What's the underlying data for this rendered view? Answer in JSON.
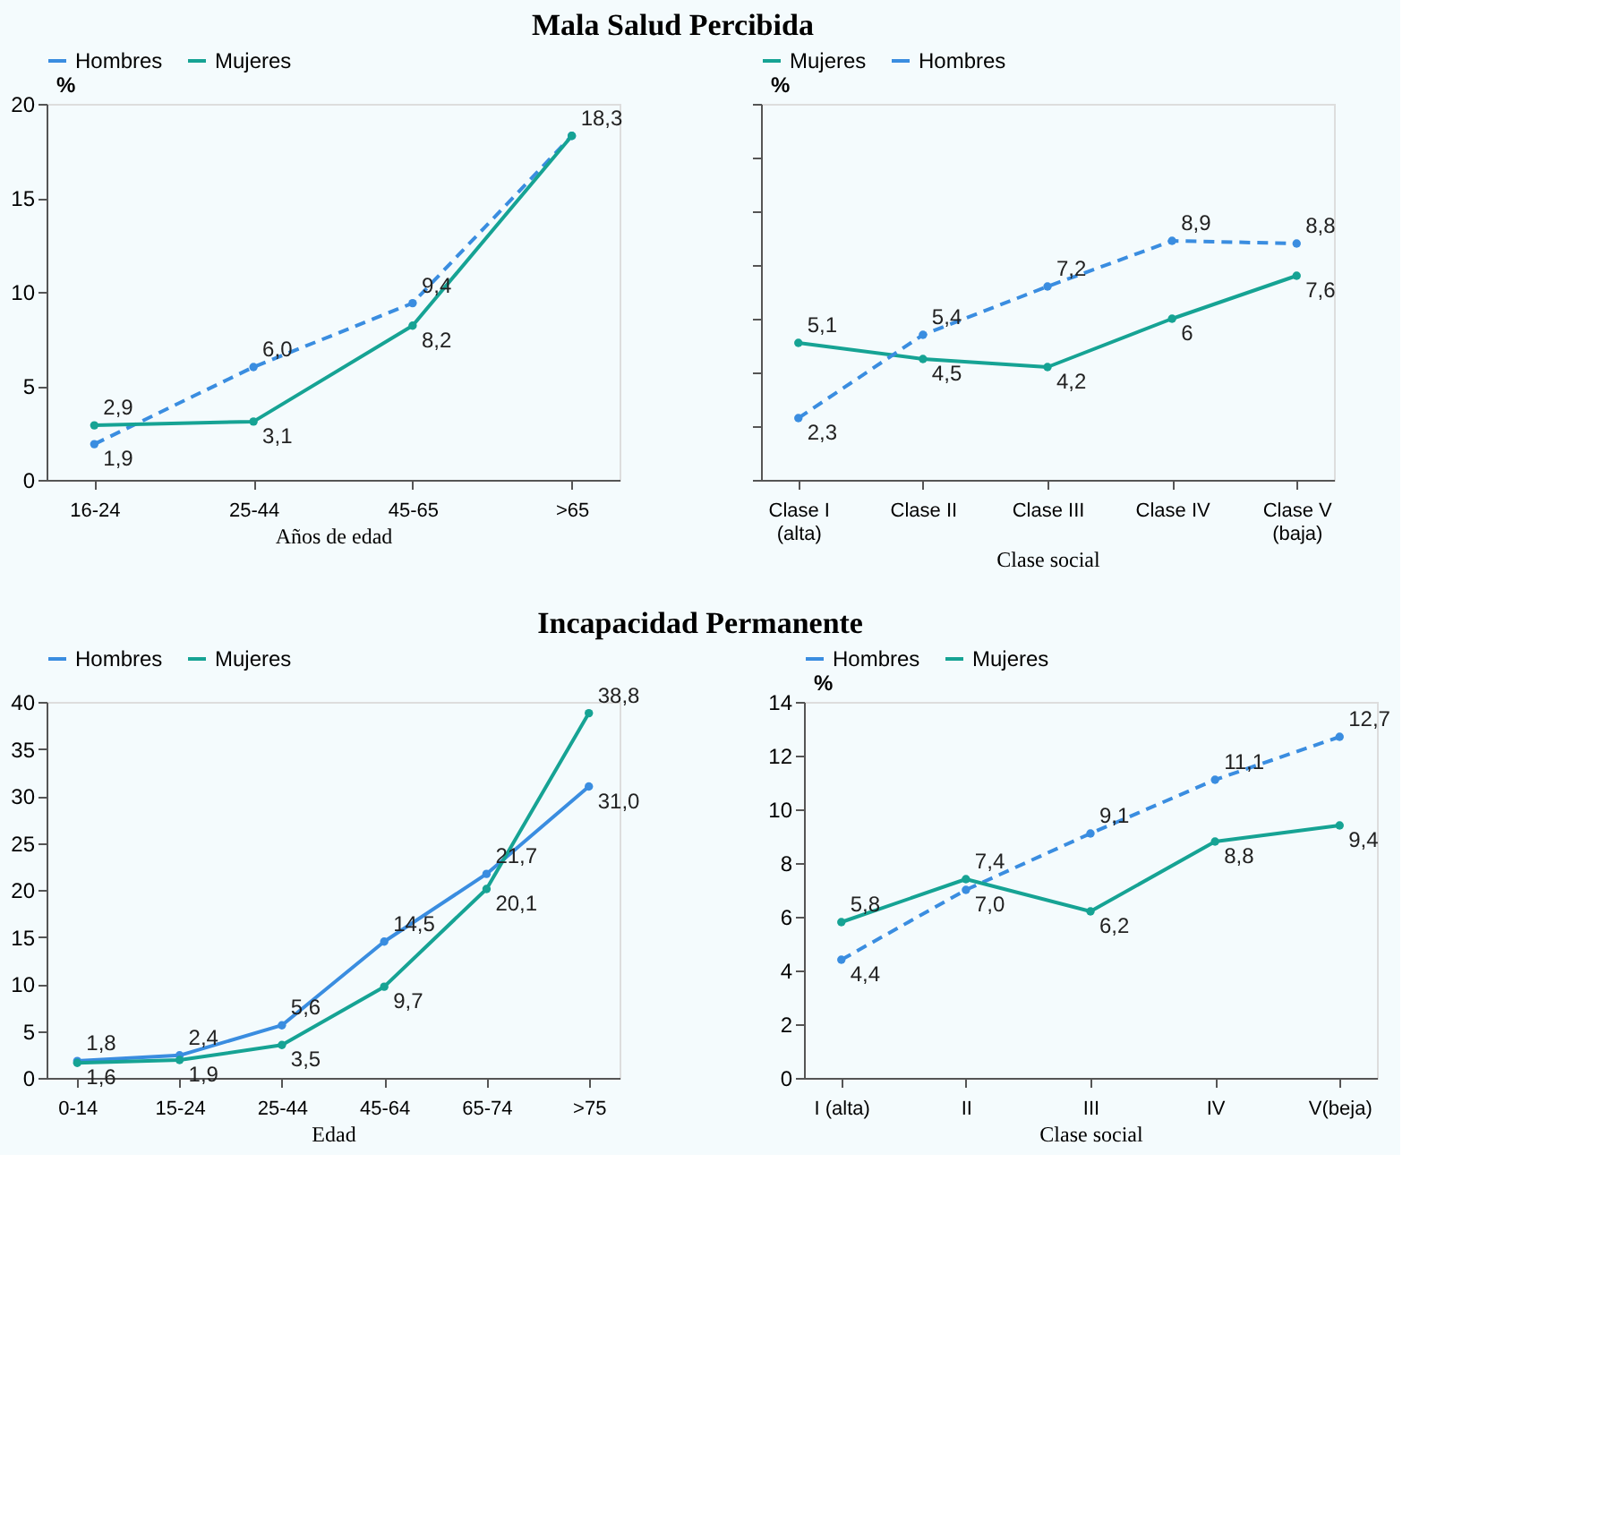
{
  "chart_data": [
    {
      "type": "line",
      "title": "Mala Salud Percibida",
      "xlabel": "Años de edad",
      "ylabel": "%",
      "categories": [
        "16-24",
        "25-44",
        "45-65",
        ">65"
      ],
      "ylim": [
        0,
        20
      ],
      "yticks": [
        0,
        5,
        10,
        15,
        20
      ],
      "grid": false,
      "legend": "top",
      "marker": "circle",
      "series": [
        {
          "name": "Hombres",
          "color": "#3a8de0",
          "line_style": "dashed",
          "values": [
            1.9,
            6.0,
            9.4,
            18.3
          ],
          "value_labels": [
            "1,9",
            "6,0",
            "9,4",
            "18,3"
          ]
        },
        {
          "name": "Mujeres",
          "color": "#16a394",
          "line_style": "solid",
          "values": [
            2.9,
            3.1,
            8.2,
            18.3
          ],
          "value_labels": [
            "2,9",
            "3,1",
            "8,2",
            null
          ]
        }
      ]
    },
    {
      "type": "line",
      "xlabel": "Clase social",
      "ylabel": "%",
      "categories": [
        "Clase I\n(alta)",
        "Clase II",
        "Clase III",
        "Clase IV",
        "Clase V\n(baja)"
      ],
      "ylim": [
        0,
        14
      ],
      "yticks": [
        {
          "value": 0,
          "label": null
        },
        {
          "value": 2,
          "label": null
        },
        {
          "value": 4,
          "label": null
        },
        {
          "value": 6,
          "label": null
        },
        {
          "value": 8,
          "label": null
        },
        {
          "value": 10,
          "label": null
        },
        {
          "value": 12,
          "label": null
        },
        {
          "value": 14,
          "label": null
        }
      ],
      "tick_labels": "x",
      "grid": false,
      "legend": "top",
      "marker": "circle",
      "series": [
        {
          "name": "Mujeres",
          "color": "#16a394",
          "line_style": "solid",
          "values": [
            5.1,
            4.5,
            4.2,
            6,
            7.6
          ],
          "value_labels": [
            "5,1",
            "4,5",
            "4,2",
            "6",
            "7,6"
          ]
        },
        {
          "name": "Hombres",
          "color": "#3a8de0",
          "line_style": "dashed",
          "values": [
            2.3,
            5.4,
            7.2,
            8.9,
            8.8
          ],
          "value_labels": [
            "2,3",
            "5,4",
            "7,2",
            "8,9",
            "8,8"
          ]
        }
      ]
    },
    {
      "type": "line",
      "title": "Incapacidad Permanente",
      "xlabel": "Edad",
      "categories": [
        "0-14",
        "15-24",
        "25-44",
        "45-64",
        "65-74",
        ">75"
      ],
      "ylim": [
        0,
        40
      ],
      "yticks": [
        0,
        5,
        10,
        15,
        20,
        25,
        30,
        35,
        40
      ],
      "grid": false,
      "legend": "top",
      "marker": "circle",
      "series": [
        {
          "name": "Hombres",
          "color": "#3a8de0",
          "line_style": "solid",
          "values": [
            1.8,
            2.4,
            5.6,
            14.5,
            21.7,
            31.0
          ],
          "value_labels": [
            "1,8",
            "2,4",
            "5,6",
            "14,5",
            "21,7",
            "31,0"
          ]
        },
        {
          "name": "Mujeres",
          "color": "#16a394",
          "line_style": "solid",
          "values": [
            1.6,
            1.9,
            3.5,
            9.7,
            20.1,
            38.8
          ],
          "value_labels": [
            "1,6",
            "1,9",
            "3,5",
            "9,7",
            "20,1",
            "38,8"
          ]
        }
      ]
    },
    {
      "type": "line",
      "xlabel": "Clase social",
      "ylabel": "%",
      "categories": [
        "I (alta)",
        "II",
        "III",
        "IV",
        "V(beja)"
      ],
      "ylim": [
        0,
        14
      ],
      "yticks": [
        0,
        2,
        4,
        6,
        8,
        10,
        12,
        14
      ],
      "grid": false,
      "legend": "top",
      "marker": "circle",
      "series": [
        {
          "name": "Hombres",
          "color": "#3a8de0",
          "line_style": "dashed",
          "values": [
            4.4,
            7.0,
            9.1,
            11.1,
            12.7
          ],
          "value_labels": [
            "4,4",
            "7,0",
            "9,1",
            "11,1",
            "12,7"
          ]
        },
        {
          "name": "Mujeres",
          "color": "#16a394",
          "line_style": "solid",
          "values": [
            5.8,
            7.4,
            6.2,
            8.8,
            9.4
          ],
          "value_labels": [
            "5,8",
            "7,4",
            "6,2",
            "8,8",
            "9,4"
          ]
        }
      ]
    }
  ]
}
